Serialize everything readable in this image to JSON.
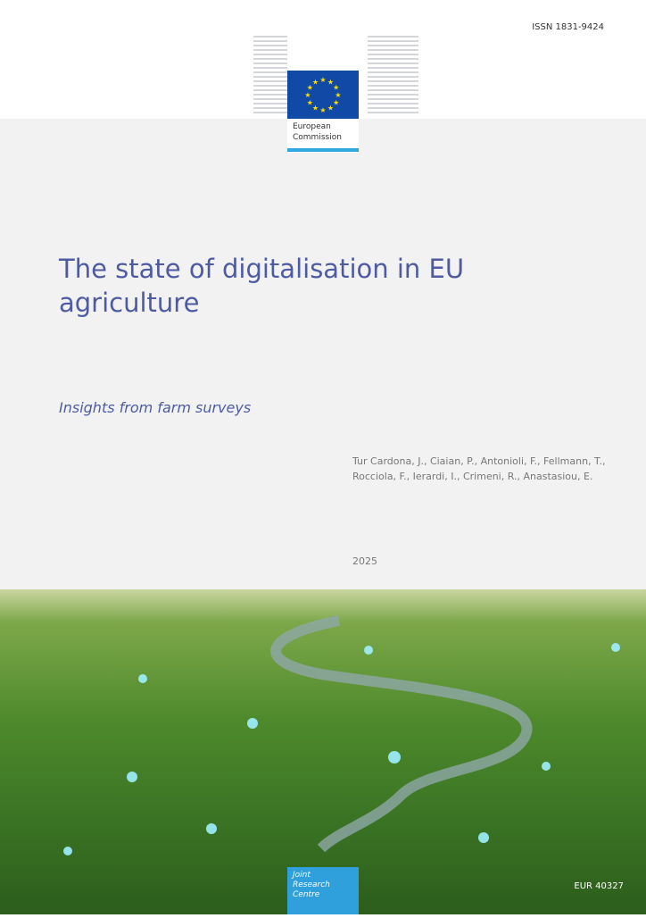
{
  "issn": "ISSN 1831-9424",
  "logo": {
    "line1": "European",
    "line2": "Commission",
    "flag_color": "#104aa6",
    "bar_color": "#2fa8dd"
  },
  "title": "The state of digitalisation in EU agriculture",
  "subtitle": "Insights from farm surveys",
  "authors": {
    "line1": "Tur Cardona, J., Ciaian, P., Antonioli, F., Fellmann, T.,",
    "line2": "Rocciola, F., Ierardi, I., Crimeni, R., Anastasiou, E."
  },
  "year": "2025",
  "jrc": {
    "line1": "Joint",
    "line2": "Research",
    "line3": "Centre",
    "color": "#2fa0dc"
  },
  "report_number": "EUR 40327",
  "title_color": "#4e5ba3"
}
